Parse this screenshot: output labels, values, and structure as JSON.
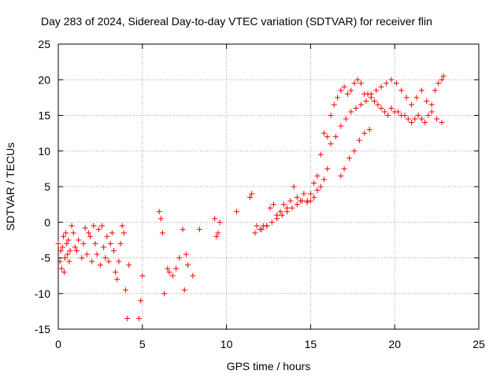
{
  "chart_data": {
    "type": "scatter",
    "title": "Day 283 of 2024, Sidereal Day-to-day VTEC variation (SDTVAR) for receiver flin",
    "xlabel": "GPS time / hours",
    "ylabel": "SDTVAR / TECUs",
    "xlim": [
      0,
      25
    ],
    "ylim": [
      -15,
      25
    ],
    "xticks": [
      "0",
      "5",
      "10",
      "15",
      "20",
      "25"
    ],
    "yticks": [
      "-15",
      "-10",
      "-5",
      "0",
      "5",
      "10",
      "15",
      "20",
      "25"
    ],
    "grid": true,
    "marker": "plus",
    "color": "#ff0000",
    "series": [
      {
        "name": "SDTVAR",
        "x": [
          0.0,
          0.1,
          0.15,
          0.2,
          0.25,
          0.3,
          0.35,
          0.4,
          0.45,
          0.5,
          0.55,
          0.6,
          0.65,
          0.7,
          0.8,
          0.9,
          1.0,
          1.1,
          1.2,
          1.4,
          1.5,
          1.6,
          1.7,
          1.8,
          1.9,
          2.0,
          2.1,
          2.2,
          2.3,
          2.4,
          2.5,
          2.6,
          2.7,
          2.8,
          2.9,
          3.0,
          3.1,
          3.2,
          3.3,
          3.4,
          3.5,
          3.6,
          3.7,
          3.8,
          3.9,
          4.0,
          4.1,
          4.2,
          4.8,
          4.9,
          5.0,
          6.0,
          6.1,
          6.2,
          6.3,
          6.5,
          6.6,
          6.8,
          7.0,
          7.2,
          7.4,
          7.5,
          7.6,
          7.7,
          8.0,
          8.4,
          9.3,
          9.4,
          9.5,
          9.6,
          10.6,
          11.4,
          11.5,
          11.7,
          12.0,
          12.2,
          12.4,
          12.6,
          12.8,
          13.0,
          13.2,
          13.4,
          13.6,
          13.8,
          14.0,
          14.2,
          14.4,
          14.6,
          14.8,
          15.0,
          15.2,
          15.4,
          15.6,
          15.8,
          16.0,
          16.2,
          16.4,
          16.6,
          16.8,
          17.0,
          17.2,
          17.4,
          17.6,
          17.8,
          18.0,
          18.2,
          18.4,
          18.6,
          18.8,
          19.0,
          19.2,
          19.4,
          19.6,
          19.8,
          20.0,
          20.2,
          20.4,
          20.6,
          20.8,
          21.0,
          21.2,
          21.4,
          21.6,
          21.8,
          22.0,
          22.2,
          22.4,
          22.6,
          22.8,
          22.9,
          16.2,
          16.5,
          16.8,
          17.1,
          17.4,
          17.7,
          18.0,
          18.3,
          18.6,
          18.9,
          19.2,
          19.5,
          19.8,
          20.1,
          20.4,
          20.7,
          21.0,
          21.3,
          21.6,
          21.9,
          22.2,
          22.5,
          22.8,
          16.8,
          17.0,
          17.3,
          17.6,
          17.9,
          18.2,
          18.5,
          15.4,
          15.6,
          15.8,
          16.0,
          15.2,
          15.0,
          14.8,
          14.5,
          14.2,
          13.9,
          13.6,
          13.3,
          13.0,
          12.7,
          12.4,
          12.1,
          11.8
        ],
        "y": [
          -3.0,
          -5.5,
          -4.0,
          -6.5,
          -3.5,
          -2.0,
          -7.0,
          -5.0,
          -1.5,
          -3.0,
          -4.5,
          -2.5,
          -5.5,
          -4.0,
          -0.5,
          -1.5,
          -3.5,
          -4.0,
          -2.5,
          -5.0,
          -3.0,
          -0.8,
          -4.5,
          -1.5,
          -2.0,
          -5.5,
          -0.5,
          -3.0,
          -4.5,
          -1.0,
          -6.0,
          -0.5,
          -3.5,
          -5.0,
          -2.0,
          -5.5,
          -3.0,
          -1.5,
          -4.0,
          -7.0,
          -8.0,
          -5.5,
          -3.0,
          -0.5,
          -1.5,
          -9.5,
          -13.5,
          -6.0,
          -13.5,
          -11.0,
          -7.5,
          1.5,
          0.5,
          -1.5,
          -10.0,
          -6.5,
          -7.0,
          -7.5,
          -6.5,
          -5.0,
          -1.0,
          -9.5,
          -4.5,
          -6.0,
          -7.5,
          -1.0,
          0.5,
          -2.0,
          -1.5,
          0.0,
          1.5,
          3.5,
          4.0,
          -1.5,
          -1.0,
          -0.5,
          -0.5,
          2.0,
          2.5,
          1.0,
          1.5,
          2.5,
          2.0,
          3.0,
          5.0,
          3.5,
          3.0,
          4.0,
          3.0,
          4.0,
          5.5,
          6.5,
          9.5,
          12.5,
          12.0,
          15.0,
          16.5,
          17.5,
          18.5,
          19.0,
          18.0,
          18.5,
          19.5,
          20.0,
          19.5,
          18.0,
          18.0,
          17.5,
          17.0,
          16.5,
          16.0,
          15.5,
          15.0,
          16.0,
          15.5,
          15.5,
          15.0,
          15.0,
          14.5,
          14.0,
          14.5,
          15.0,
          14.5,
          14.0,
          15.0,
          16.5,
          18.5,
          19.5,
          20.0,
          20.5,
          11.0,
          12.0,
          13.5,
          14.5,
          15.5,
          16.0,
          16.5,
          17.0,
          18.0,
          18.5,
          19.0,
          19.5,
          20.0,
          19.5,
          18.5,
          17.5,
          16.5,
          17.5,
          18.5,
          17.0,
          15.5,
          14.5,
          14.0,
          6.5,
          7.5,
          9.0,
          10.0,
          11.5,
          12.5,
          13.0,
          4.5,
          5.0,
          6.0,
          7.5,
          3.5,
          3.0,
          2.8,
          3.0,
          2.5,
          2.0,
          1.5,
          1.0,
          0.5,
          0.0,
          -0.5,
          -1.0,
          -0.5
        ]
      }
    ]
  }
}
